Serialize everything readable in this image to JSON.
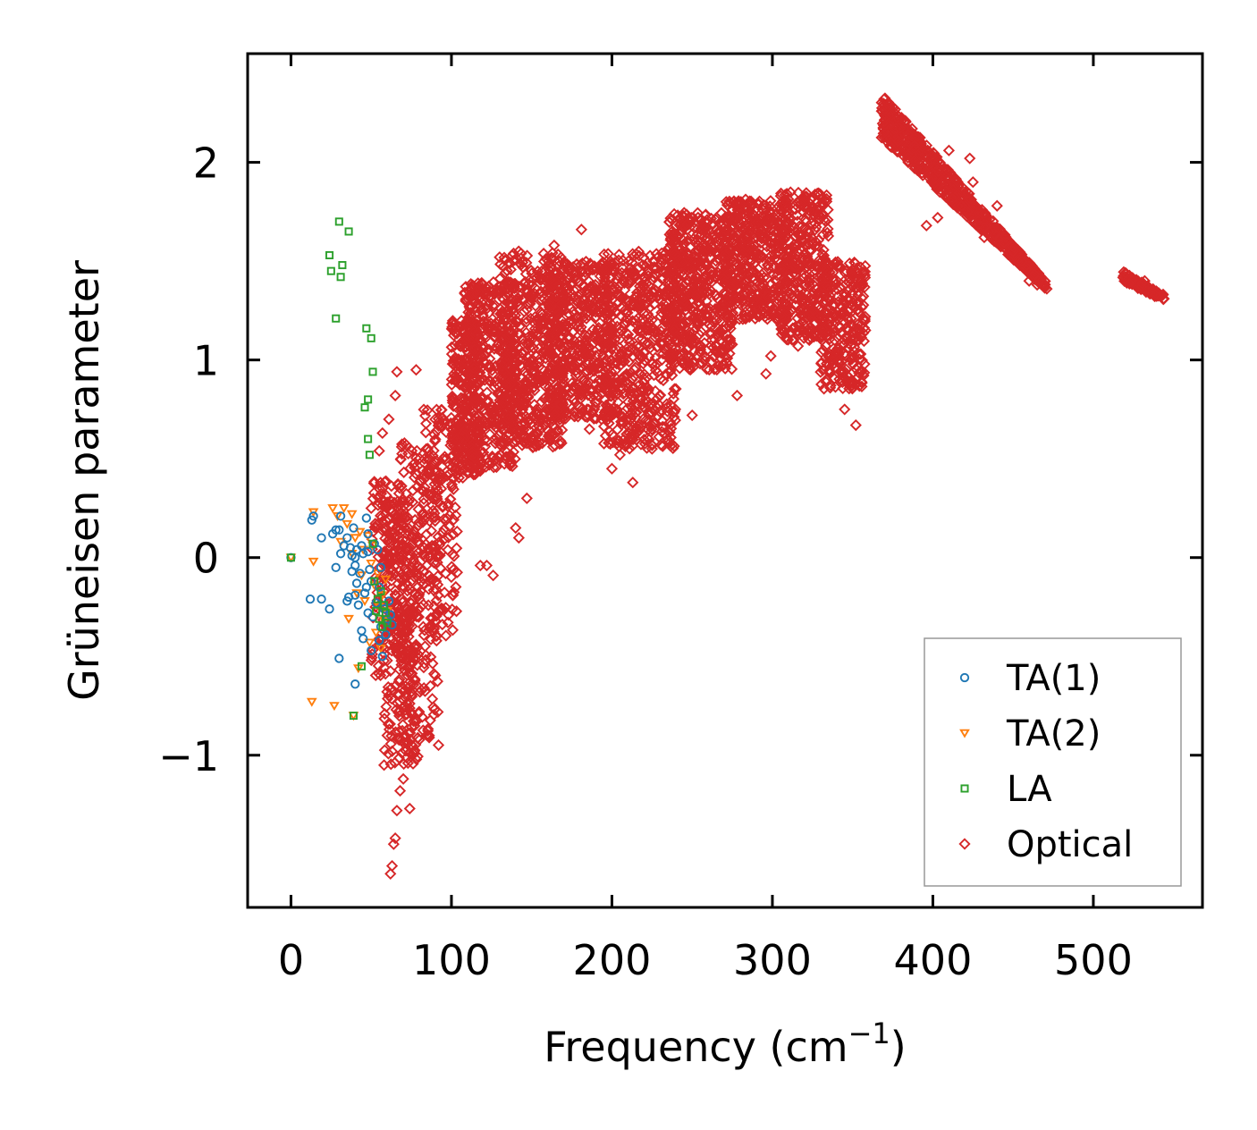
{
  "chart_data": {
    "type": "scatter",
    "title": "",
    "xlabel": "Frequency (cm",
    "xlabel_sup": "−1",
    "xlabel_suffix": ")",
    "ylabel": "Grüneisen parameter",
    "xlim": [
      -27,
      568
    ],
    "ylim": [
      -1.77,
      2.55
    ],
    "xticks": [
      0,
      100,
      200,
      300,
      400,
      500
    ],
    "xtick_labels": [
      "0",
      "100",
      "200",
      "300",
      "400",
      "500"
    ],
    "yticks": [
      -1,
      0,
      1,
      2
    ],
    "ytick_labels": [
      "−1",
      "0",
      "1",
      "2"
    ],
    "grid": false,
    "legend_position": "bottom-right",
    "series": [
      {
        "name": "TA(1)",
        "marker": "circle",
        "color": "#1f77b4",
        "points": [
          [
            0,
            0
          ],
          [
            12,
            -0.21
          ],
          [
            13,
            0.19
          ],
          [
            14,
            0.21
          ],
          [
            19,
            -0.21
          ],
          [
            19,
            0.1
          ],
          [
            24,
            -0.26
          ],
          [
            26,
            0.12
          ],
          [
            28,
            0.14
          ],
          [
            28,
            -0.05
          ],
          [
            30,
            -0.51
          ],
          [
            30,
            0.14
          ],
          [
            31,
            0.02
          ],
          [
            31,
            0.21
          ],
          [
            33,
            0.06
          ],
          [
            35,
            0.1
          ],
          [
            35,
            -0.22
          ],
          [
            36,
            -0.2
          ],
          [
            37,
            0.05
          ],
          [
            38,
            0.01
          ],
          [
            38,
            -0.07
          ],
          [
            39,
            0.15
          ],
          [
            40,
            0.0
          ],
          [
            40,
            -0.04
          ],
          [
            40,
            -0.19
          ],
          [
            40,
            -0.64
          ],
          [
            41,
            0.04
          ],
          [
            41,
            -0.13
          ],
          [
            42,
            -0.24
          ],
          [
            43,
            -0.08
          ],
          [
            44,
            0.06
          ],
          [
            44,
            -0.37
          ],
          [
            45,
            -0.41
          ],
          [
            45,
            0.02
          ],
          [
            46,
            -0.18
          ],
          [
            47,
            -0.15
          ],
          [
            47,
            0.2
          ],
          [
            48,
            0.12
          ],
          [
            48,
            -0.28
          ],
          [
            48,
            0.03
          ],
          [
            49,
            -0.06
          ],
          [
            50,
            -0.47
          ],
          [
            50,
            -0.12
          ],
          [
            51,
            -0.3
          ],
          [
            52,
            0.07
          ],
          [
            53,
            -0.23
          ],
          [
            54,
            0.04
          ],
          [
            55,
            -0.42
          ],
          [
            55,
            -0.15
          ],
          [
            56,
            -0.35
          ],
          [
            56,
            -0.05
          ],
          [
            57,
            -0.5
          ],
          [
            58,
            -0.26
          ],
          [
            59,
            -0.39
          ],
          [
            60,
            -0.31
          ],
          [
            61,
            -0.22
          ],
          [
            62,
            -0.29
          ],
          [
            63,
            -0.34
          ]
        ]
      },
      {
        "name": "TA(2)",
        "marker": "triangle-down",
        "color": "#ff7f0e",
        "points": [
          [
            0,
            0
          ],
          [
            13,
            -0.73
          ],
          [
            14,
            0.23
          ],
          [
            14,
            -0.02
          ],
          [
            27,
            -0.75
          ],
          [
            26,
            0.25
          ],
          [
            29,
            0.21
          ],
          [
            31,
            0.08
          ],
          [
            33,
            0.25
          ],
          [
            35,
            0.17
          ],
          [
            36,
            -0.31
          ],
          [
            38,
            0.02
          ],
          [
            38,
            0.22
          ],
          [
            39,
            -0.8
          ],
          [
            40,
            0.1
          ],
          [
            41,
            -0.18
          ],
          [
            42,
            -0.56
          ],
          [
            43,
            0.13
          ],
          [
            44,
            -0.09
          ],
          [
            45,
            0.04
          ],
          [
            46,
            -0.22
          ],
          [
            48,
            0.11
          ],
          [
            49,
            -0.43
          ],
          [
            50,
            -0.03
          ],
          [
            51,
            0.06
          ],
          [
            52,
            -0.14
          ],
          [
            53,
            -0.38
          ],
          [
            54,
            -0.08
          ],
          [
            55,
            -0.25
          ],
          [
            56,
            -0.46
          ],
          [
            57,
            -0.19
          ],
          [
            58,
            -0.32
          ],
          [
            59,
            -0.11
          ],
          [
            60,
            -0.27
          ]
        ]
      },
      {
        "name": "LA",
        "marker": "square",
        "color": "#2ca02c",
        "points": [
          [
            0,
            0
          ],
          [
            24,
            1.53
          ],
          [
            25,
            1.45
          ],
          [
            28,
            1.21
          ],
          [
            30,
            1.7
          ],
          [
            31,
            1.42
          ],
          [
            32,
            1.48
          ],
          [
            36,
            1.65
          ],
          [
            39,
            -0.8
          ],
          [
            44,
            -0.55
          ],
          [
            46,
            0.76
          ],
          [
            47,
            1.16
          ],
          [
            48,
            0.6
          ],
          [
            48,
            0.8
          ],
          [
            49,
            0.52
          ],
          [
            50,
            1.11
          ],
          [
            51,
            0.94
          ],
          [
            51,
            0.07
          ],
          [
            52,
            -0.12
          ],
          [
            53,
            -0.27
          ],
          [
            54,
            -0.21
          ],
          [
            55,
            -0.31
          ],
          [
            56,
            -0.17
          ],
          [
            57,
            -0.35
          ],
          [
            58,
            -0.24
          ],
          [
            59,
            -0.28
          ],
          [
            60,
            -0.33
          ]
        ]
      },
      {
        "name": "Optical",
        "marker": "diamond",
        "color": "#d62728",
        "clusters": [
          {
            "x_range": [
              50,
              72
            ],
            "y_range": [
              -0.6,
              0.4
            ],
            "count": 140
          },
          {
            "x_range": [
              58,
              80
            ],
            "y_range": [
              -1.05,
              0.3
            ],
            "count": 240
          },
          {
            "x_range": [
              66,
              92
            ],
            "y_range": [
              -0.95,
              0.6
            ],
            "count": 220
          },
          {
            "x_range": [
              82,
              104
            ],
            "y_range": [
              -0.4,
              0.75
            ],
            "count": 160
          },
          {
            "x_range": [
              100,
              118
            ],
            "y_range": [
              0.4,
              1.2
            ],
            "count": 260
          },
          {
            "x_range": [
              108,
              140
            ],
            "y_range": [
              0.45,
              1.4
            ],
            "count": 420
          },
          {
            "x_range": [
              130,
              170
            ],
            "y_range": [
              0.55,
              1.55
            ],
            "count": 520
          },
          {
            "x_range": [
              160,
              200
            ],
            "y_range": [
              0.7,
              1.5
            ],
            "count": 520
          },
          {
            "x_range": [
              195,
              240
            ],
            "y_range": [
              0.55,
              1.55
            ],
            "count": 560
          },
          {
            "x_range": [
              235,
              275
            ],
            "y_range": [
              0.95,
              1.75
            ],
            "count": 520
          },
          {
            "x_range": [
              270,
              310
            ],
            "y_range": [
              1.2,
              1.82
            ],
            "count": 460
          },
          {
            "x_range": [
              305,
              335
            ],
            "y_range": [
              1.1,
              1.85
            ],
            "count": 360
          },
          {
            "x_range": [
              330,
              358
            ],
            "y_range": [
              0.85,
              1.5
            ],
            "count": 280
          },
          {
            "x_range": [
              368,
              470
            ],
            "y_range_start": [
              2.12,
              2.35
            ],
            "y_range_end": [
              1.36,
              1.4
            ],
            "count": 700
          },
          {
            "x_range": [
              518,
              544
            ],
            "y_range_start": [
              1.4,
              1.45
            ],
            "y_range_end": [
              1.3,
              1.33
            ],
            "count": 90
          }
        ],
        "points": [
          [
            62,
            -1.6
          ],
          [
            63,
            -1.56
          ],
          [
            64,
            -1.45
          ],
          [
            65,
            -1.42
          ],
          [
            66,
            -1.28
          ],
          [
            68,
            -1.18
          ],
          [
            70,
            -1.12
          ],
          [
            74,
            -1.27
          ],
          [
            58,
            -1.05
          ],
          [
            63,
            -0.98
          ],
          [
            60,
            -0.9
          ],
          [
            65,
            0.82
          ],
          [
            66,
            0.94
          ],
          [
            78,
            0.95
          ],
          [
            61,
            0.7
          ],
          [
            69,
            0.56
          ],
          [
            57,
            0.35
          ],
          [
            57,
            0.63
          ],
          [
            60,
            0.28
          ],
          [
            55,
            0.54
          ],
          [
            50,
            0.25
          ],
          [
            118,
            -0.04
          ],
          [
            126,
            -0.09
          ],
          [
            122,
            -0.04
          ],
          [
            140,
            0.15
          ],
          [
            142,
            0.1
          ],
          [
            147,
            0.3
          ],
          [
            213,
            0.38
          ],
          [
            200,
            0.45
          ],
          [
            186,
            0.65
          ],
          [
            205,
            0.52
          ],
          [
            225,
            0.55
          ],
          [
            236,
            0.58
          ],
          [
            250,
            0.72
          ],
          [
            278,
            0.82
          ],
          [
            296,
            0.93
          ],
          [
            299,
            1.02
          ],
          [
            316,
            1.07
          ],
          [
            323,
            1.1
          ],
          [
            345,
            0.75
          ],
          [
            352,
            0.67
          ],
          [
            358,
            1.15
          ],
          [
            181,
            1.66
          ],
          [
            164,
            1.58
          ],
          [
            130,
            1.52
          ],
          [
            124,
            1.35
          ],
          [
            116,
            1.18
          ],
          [
            130,
            1.05
          ],
          [
            155,
            0.9
          ],
          [
            170,
            0.88
          ],
          [
            180,
            1.3
          ],
          [
            410,
            2.06
          ],
          [
            423,
            2.02
          ],
          [
            440,
            1.78
          ],
          [
            396,
            1.68
          ],
          [
            403,
            1.72
          ],
          [
            418,
            1.78
          ],
          [
            425,
            1.9
          ],
          [
            432,
            1.62
          ],
          [
            450,
            1.55
          ],
          [
            460,
            1.4
          ],
          [
            465,
            1.38
          ],
          [
            471,
            1.36
          ],
          [
            520,
            1.44
          ],
          [
            532,
            1.4
          ],
          [
            544,
            1.31
          ]
        ]
      }
    ]
  }
}
